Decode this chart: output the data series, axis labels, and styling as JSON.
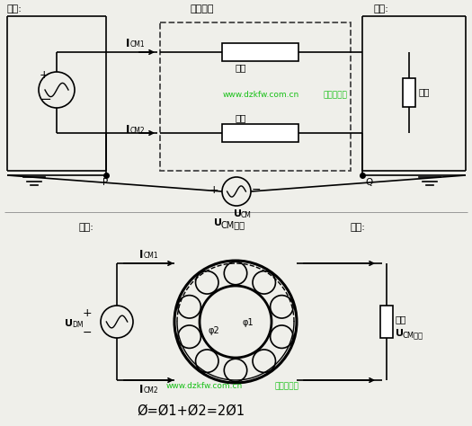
{
  "bg_color": "#efefea",
  "line_color": "#000000",
  "title_top": "共模滤波",
  "label_source": "电源:",
  "label_device": "设备:",
  "label_P": "P",
  "label_Q": "Q",
  "label_zukang1": "阻抗",
  "label_zukang2": "阻抗",
  "label_zukang3": "阻抗",
  "label_source2": "电源:",
  "label_device2": "设备:",
  "label_UDM": "U",
  "label_UDM_sub": "DM",
  "label_UCM_coil_main": "U",
  "label_UCM_coil_sub": "CM线圈",
  "label_ICM1": "I",
  "label_ICM1_sub": "CM1",
  "label_ICM2": "I",
  "label_ICM2_sub": "CM2",
  "label_UCM": "U",
  "label_UCM_sub": "CM",
  "label_load": "负载",
  "label_UCM_load_main": "U",
  "label_UCM_load_sub": "CM负载",
  "label_phi": "Ø=Ø1+Ø2=2Ø1",
  "phi1_label": "φ1",
  "phi2_label": "φ2",
  "watermark1": "www.dzkfw.com.cn",
  "watermark2": "电子开发网"
}
